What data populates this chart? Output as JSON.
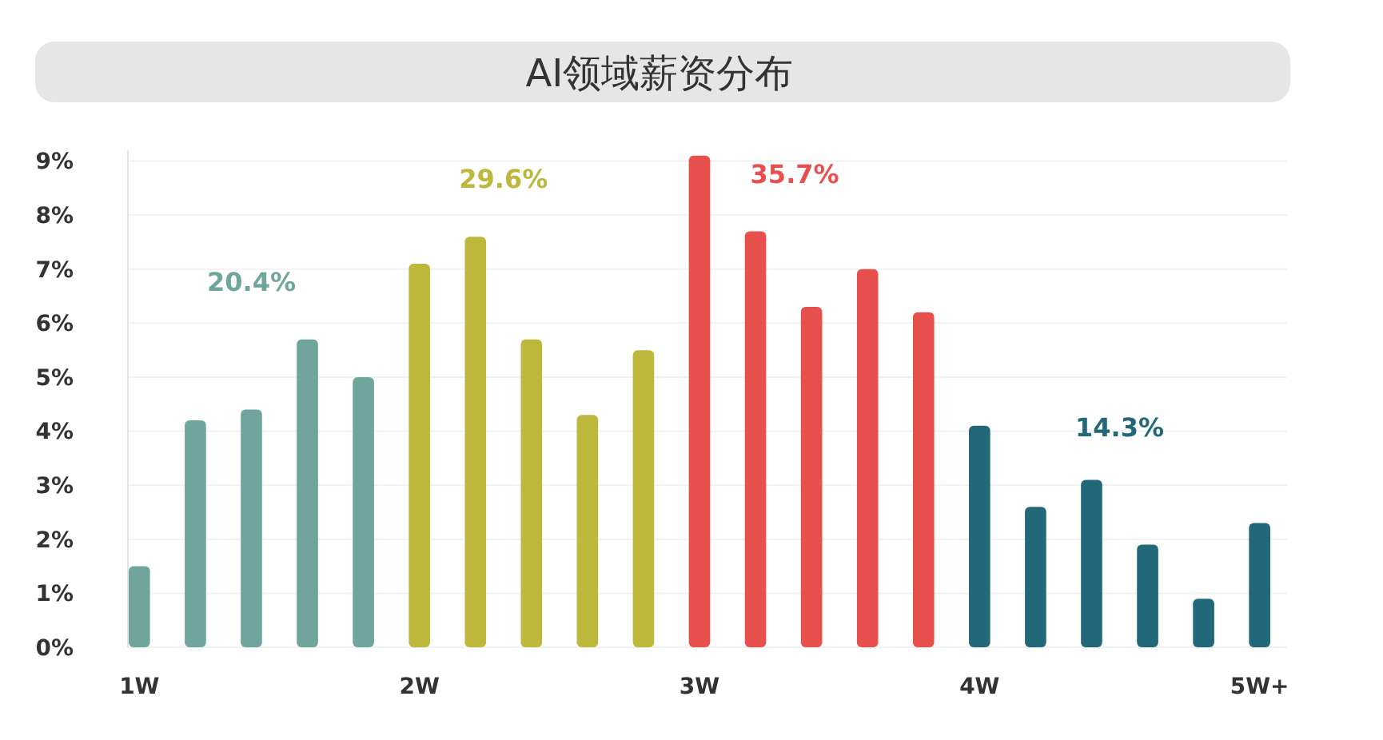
{
  "chart_data": {
    "type": "bar",
    "title": "AI领域薪资分布",
    "categories": [
      "1W",
      null,
      null,
      null,
      null,
      "2W",
      null,
      null,
      null,
      null,
      "3W",
      null,
      null,
      null,
      null,
      "4W",
      null,
      null,
      null,
      null,
      "5W+"
    ],
    "values": [
      1.5,
      4.2,
      4.4,
      5.7,
      5.0,
      7.1,
      7.6,
      5.7,
      4.3,
      5.5,
      9.1,
      7.7,
      6.3,
      7.0,
      6.2,
      4.1,
      2.6,
      3.1,
      1.9,
      0.9,
      2.3
    ],
    "colors": [
      "#6fa59c",
      "#6fa59c",
      "#6fa59c",
      "#6fa59c",
      "#6fa59c",
      "#bdb83c",
      "#bdb83c",
      "#bdb83c",
      "#bdb83c",
      "#bdb83c",
      "#e8504d",
      "#e8504d",
      "#e8504d",
      "#e8504d",
      "#e8504d",
      "#236878",
      "#236878",
      "#236878",
      "#236878",
      "#236878",
      "#236878"
    ],
    "ylim": [
      0,
      9.2
    ],
    "yticks": [
      {
        "value": 0,
        "label": "0%"
      },
      {
        "value": 1,
        "label": "1%"
      },
      {
        "value": 2,
        "label": "2%"
      },
      {
        "value": 3,
        "label": "3%"
      },
      {
        "value": 4,
        "label": "4%"
      },
      {
        "value": 5,
        "label": "5%"
      },
      {
        "value": 6,
        "label": "6%"
      },
      {
        "value": 7,
        "label": "7%"
      },
      {
        "value": 8,
        "label": "8%"
      },
      {
        "value": 9,
        "label": "9%"
      }
    ],
    "grid": "y",
    "annotations": [
      "20.4%",
      "29.6%",
      "35.7%",
      "14.3%"
    ]
  }
}
